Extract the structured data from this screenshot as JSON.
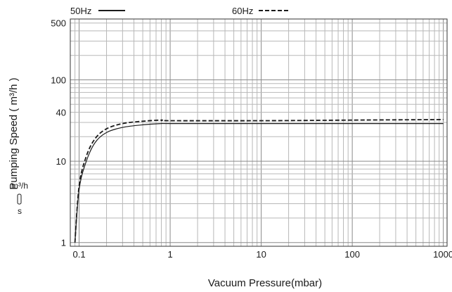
{
  "chart_data": {
    "type": "line",
    "xlabel": "Vacuum Pressure(mbar)",
    "ylabel": "Pumping Speed ( m³/h )",
    "x_scale": "log",
    "y_scale": "log",
    "xlim": [
      0.08,
      1100
    ],
    "ylim": [
      0.9,
      560
    ],
    "x_ticks": [
      {
        "v": 0.1,
        "label": "0.1"
      },
      {
        "v": 1,
        "label": "1"
      },
      {
        "v": 10,
        "label": "10"
      },
      {
        "v": 100,
        "label": "100"
      },
      {
        "v": 1000,
        "label": "1000"
      }
    ],
    "y_ticks": [
      {
        "v": 1,
        "label": "1"
      },
      {
        "v": 10,
        "label": "10"
      },
      {
        "v": 40,
        "label": "40"
      },
      {
        "v": 100,
        "label": "100"
      },
      {
        "v": 500,
        "label": "500"
      }
    ],
    "grid": true,
    "legend_position": "top",
    "unit_conversion": {
      "top": "m³/h",
      "bottom": "s"
    },
    "series": [
      {
        "name": "50Hz",
        "style": "solid",
        "x": [
          0.09,
          0.1,
          0.12,
          0.15,
          0.2,
          0.3,
          0.5,
          0.8,
          1,
          10,
          100,
          1000
        ],
        "y": [
          1.0,
          4.5,
          10,
          17,
          22.5,
          26,
          28,
          29,
          29,
          29,
          29,
          29
        ]
      },
      {
        "name": "60Hz",
        "style": "dashed",
        "x": [
          0.09,
          0.1,
          0.12,
          0.15,
          0.2,
          0.3,
          0.5,
          0.8,
          1,
          10,
          100,
          1000
        ],
        "y": [
          1.0,
          5,
          11.5,
          19,
          25,
          29,
          31,
          32,
          31.5,
          31.5,
          32,
          32.5
        ]
      }
    ]
  }
}
